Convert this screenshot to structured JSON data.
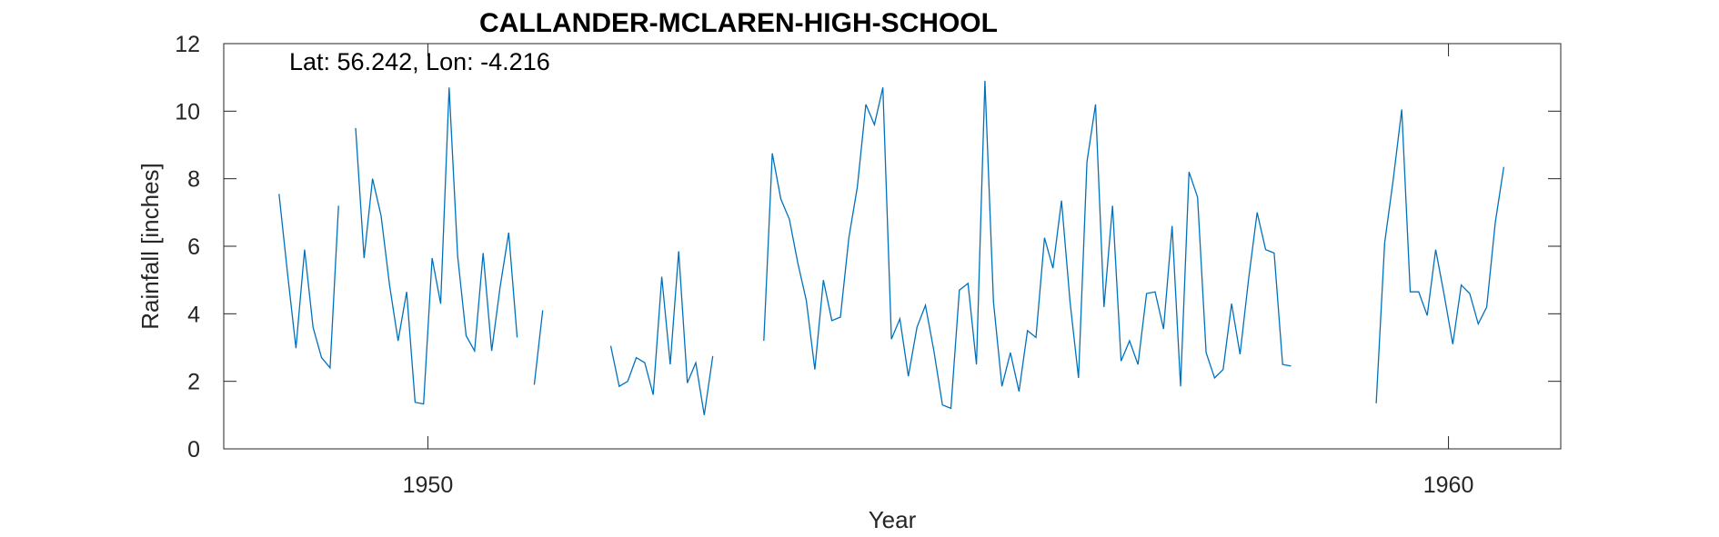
{
  "chart_data": {
    "type": "line",
    "title": "CALLANDER-MCLAREN-HIGH-SCHOOL",
    "xlabel": "Year",
    "ylabel": "Rainfall [inches]",
    "annotation": "Lat: 56.242, Lon: -4.216",
    "xlim": [
      1948.0,
      1961.1
    ],
    "ylim": [
      0,
      12
    ],
    "xticks": [
      1950,
      1960
    ],
    "yticks": [
      0,
      2,
      4,
      6,
      8,
      10,
      12
    ],
    "grid": false,
    "line_color": "#0072BD",
    "segments": [
      {
        "x": [
          1948.542,
          1948.625,
          1948.708,
          1948.792,
          1948.875,
          1948.958,
          1949.042,
          1949.125
        ],
        "y": [
          7.55,
          5.2,
          2.98,
          5.9,
          3.6,
          2.7,
          2.4,
          7.2
        ]
      },
      {
        "x": [
          1949.292,
          1949.375,
          1949.458,
          1949.542,
          1949.625,
          1949.708,
          1949.792,
          1949.875,
          1949.958,
          1950.042,
          1950.125,
          1950.208,
          1950.292,
          1950.375,
          1950.458,
          1950.542,
          1950.625,
          1950.708,
          1950.792,
          1950.875
        ],
        "y": [
          9.5,
          5.65,
          8.0,
          6.9,
          4.85,
          3.2,
          4.65,
          1.38,
          1.33,
          5.65,
          4.3,
          10.7,
          5.7,
          3.35,
          2.9,
          5.8,
          2.9,
          4.8,
          6.4,
          3.3
        ]
      },
      {
        "x": [
          1951.042,
          1951.125
        ],
        "y": [
          1.9,
          4.1
        ]
      },
      {
        "x": [
          1951.792,
          1951.875,
          1951.958,
          1952.042,
          1952.125,
          1952.208,
          1952.292,
          1952.375,
          1952.458,
          1952.542,
          1952.625,
          1952.708,
          1952.792
        ],
        "y": [
          3.05,
          1.85,
          2.0,
          2.7,
          2.55,
          1.6,
          5.1,
          2.5,
          5.85,
          1.95,
          2.55,
          1.0,
          2.75
        ]
      },
      {
        "x": [
          1953.292,
          1953.375,
          1953.458,
          1953.542,
          1953.625,
          1953.708,
          1953.792,
          1953.875,
          1953.958,
          1954.042,
          1954.125,
          1954.208,
          1954.292,
          1954.375,
          1954.458,
          1954.542,
          1954.625,
          1954.708,
          1954.792,
          1954.875,
          1954.958,
          1955.042,
          1955.125,
          1955.208,
          1955.292,
          1955.375,
          1955.458,
          1955.542,
          1955.625,
          1955.708,
          1955.792,
          1955.875,
          1955.958,
          1956.042,
          1956.125,
          1956.208,
          1956.292,
          1956.375,
          1956.458,
          1956.542,
          1956.625,
          1956.708,
          1956.792,
          1956.875,
          1956.958,
          1957.042,
          1957.125,
          1957.208,
          1957.292,
          1957.375,
          1957.458,
          1957.542,
          1957.625,
          1957.708,
          1957.792,
          1957.875,
          1957.958,
          1958.042,
          1958.125,
          1958.208,
          1958.292,
          1958.375,
          1958.458
        ],
        "y": [
          3.2,
          8.75,
          7.4,
          6.8,
          5.5,
          4.4,
          2.35,
          5.0,
          3.8,
          3.9,
          6.25,
          7.75,
          10.2,
          9.6,
          10.7,
          3.25,
          3.85,
          2.15,
          3.6,
          4.25,
          2.9,
          1.3,
          1.2,
          4.7,
          4.9,
          2.5,
          10.9,
          4.35,
          1.85,
          2.85,
          1.7,
          3.5,
          3.3,
          6.25,
          5.35,
          7.35,
          4.35,
          2.1,
          8.5,
          10.2,
          4.2,
          7.2,
          2.6,
          3.2,
          2.5,
          4.6,
          4.65,
          3.55,
          6.6,
          1.85,
          8.2,
          7.45,
          2.85,
          2.1,
          2.35,
          4.3,
          2.8,
          5.05,
          7.0,
          5.9,
          5.8,
          2.5,
          2.45
        ]
      },
      {
        "x": [
          1959.292,
          1959.375,
          1959.458,
          1959.542,
          1959.625,
          1959.708,
          1959.792,
          1959.875,
          1959.958,
          1960.042,
          1960.125,
          1960.208,
          1960.292,
          1960.375,
          1960.458
        ],
        "y": [
          1.35,
          6.1,
          7.95,
          10.05,
          4.65,
          4.65,
          3.95,
          5.9,
          4.55,
          3.1,
          4.85,
          4.6,
          3.7,
          4.2,
          6.7
        ]
      },
      {
        "x": [
          1960.458,
          1960.542
        ],
        "y": [
          6.7,
          8.35
        ]
      }
    ]
  }
}
